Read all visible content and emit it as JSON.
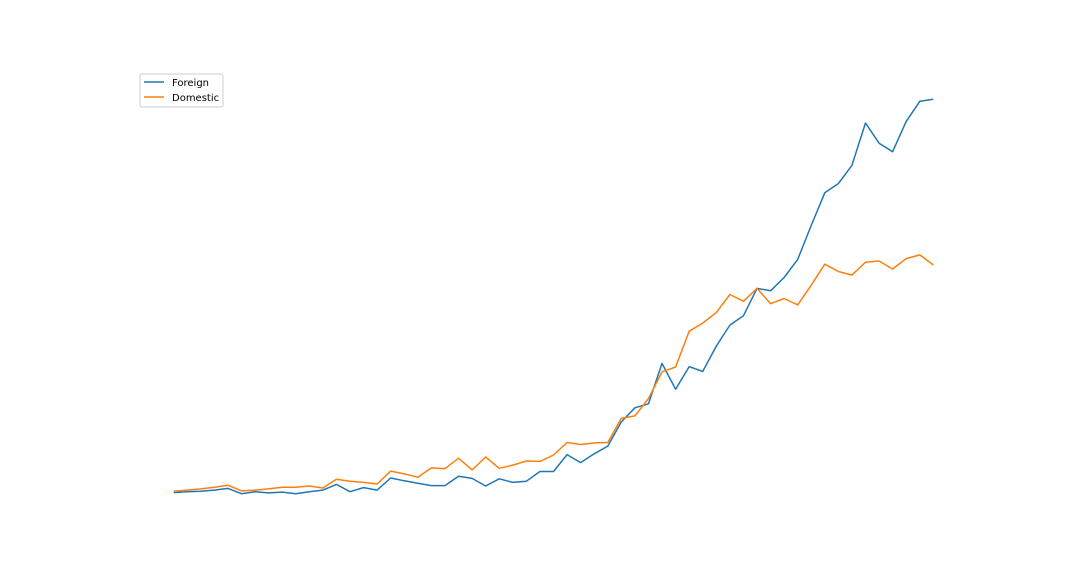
{
  "chart_data": {
    "type": "line",
    "title": "",
    "xlabel": "",
    "ylabel": "",
    "x": [
      1,
      2,
      3,
      4,
      5,
      6,
      7,
      8,
      9,
      10,
      11,
      12,
      13,
      14,
      15,
      16,
      17,
      18,
      19,
      20,
      21,
      22,
      23,
      24,
      25,
      26,
      27,
      28,
      29,
      30,
      31,
      32,
      33,
      34,
      35,
      36,
      37,
      38,
      39,
      40,
      41,
      42,
      43,
      44,
      45,
      46,
      47,
      48,
      49,
      50,
      51,
      52,
      53,
      54,
      55,
      56,
      57
    ],
    "series": [
      {
        "name": "Foreign",
        "color": "#1f77b4",
        "values": [
          0.0,
          0.2,
          0.3,
          0.6,
          1.0,
          -0.3,
          0.2,
          -0.1,
          0.1,
          -0.3,
          0.2,
          0.6,
          2.0,
          0.2,
          1.2,
          0.6,
          3.6,
          2.9,
          2.3,
          1.7,
          1.7,
          4.0,
          3.5,
          1.6,
          3.4,
          2.5,
          2.8,
          5.2,
          5.2,
          9.4,
          7.4,
          9.6,
          11.5,
          17.5,
          21.0,
          22.0,
          32.0,
          25.6,
          31.2,
          30.0,
          36.3,
          41.5,
          43.8,
          50.6,
          50.0,
          53.3,
          57.8,
          66.2,
          74.3,
          76.6,
          81.1,
          91.6,
          86.6,
          84.5,
          92.0,
          97.0,
          97.5
        ]
      },
      {
        "name": "Domestic",
        "color": "#ff7f0e",
        "values": [
          0.3,
          0.6,
          0.9,
          1.3,
          1.8,
          0.4,
          0.6,
          0.9,
          1.3,
          1.3,
          1.6,
          1.1,
          3.3,
          2.8,
          2.5,
          2.1,
          5.3,
          4.6,
          3.8,
          6.1,
          5.9,
          8.5,
          5.6,
          8.8,
          6.0,
          6.8,
          7.8,
          7.7,
          9.3,
          12.4,
          11.9,
          12.3,
          12.4,
          18.4,
          19.0,
          23.3,
          29.9,
          31.1,
          40.0,
          42.0,
          44.6,
          49.1,
          47.4,
          50.6,
          46.8,
          48.1,
          46.5,
          51.4,
          56.6,
          54.8,
          53.9,
          57.1,
          57.4,
          55.4,
          58.0,
          58.9,
          56.4
        ]
      }
    ],
    "ylim": [
      -3.6,
      105.0
    ],
    "xlim": [
      -1.85,
      59.85
    ],
    "axes_visible": false,
    "grid": false,
    "legend": {
      "position": "upper-left",
      "entries": [
        "Foreign",
        "Domestic"
      ]
    }
  }
}
